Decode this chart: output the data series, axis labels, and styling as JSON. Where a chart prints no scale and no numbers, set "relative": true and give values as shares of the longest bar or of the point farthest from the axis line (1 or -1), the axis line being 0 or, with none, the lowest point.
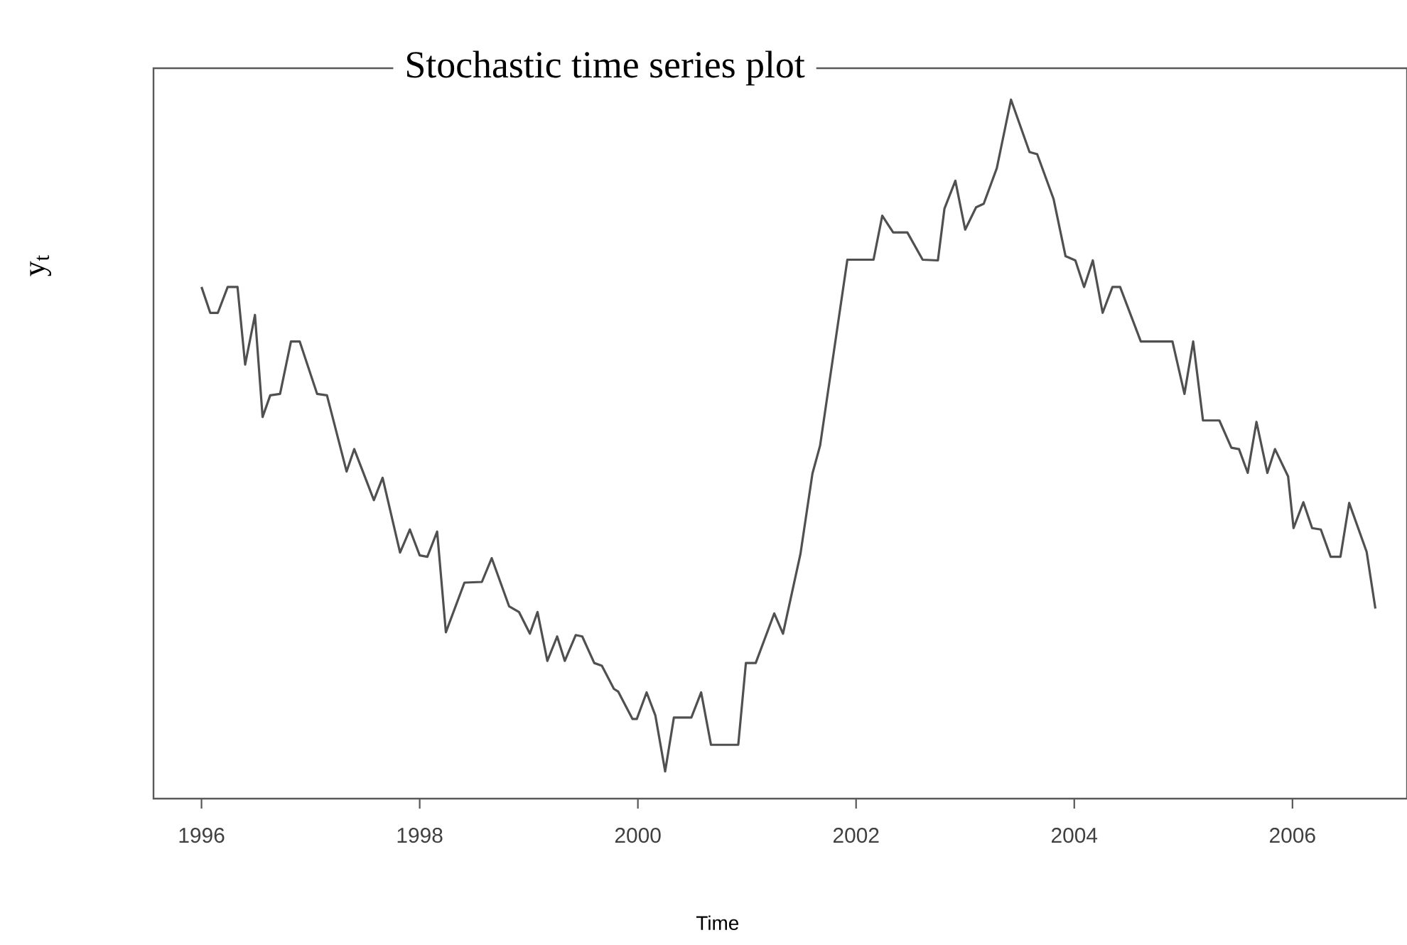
{
  "chart_data": {
    "type": "line",
    "title": "Stochastic time series plot",
    "xlabel": "Time",
    "ylabel": "y$_{t}$",
    "relative": true,
    "xlim": [
      1995.56,
      2007.05
    ],
    "xticks": [
      1996,
      1998,
      2000,
      2002,
      2004,
      2006
    ],
    "series": [
      {
        "color": "#505050",
        "x": [
          1996.0,
          1996.08,
          1996.15,
          1996.24,
          1996.33,
          1996.4,
          1996.49,
          1996.56,
          1996.63,
          1996.72,
          1996.82,
          1996.9,
          1997.06,
          1997.15,
          1997.33,
          1997.4,
          1997.58,
          1997.66,
          1997.82,
          1997.91,
          1998.0,
          1998.07,
          1998.16,
          1998.24,
          1998.41,
          1998.57,
          1998.66,
          1998.82,
          1998.91,
          1999.01,
          1999.08,
          1999.17,
          1999.26,
          1999.33,
          1999.43,
          1999.49,
          1999.6,
          1999.67,
          1999.78,
          1999.82,
          1999.95,
          1999.99,
          2000.08,
          2000.16,
          2000.25,
          2000.33,
          2000.49,
          2000.58,
          2000.67,
          2000.92,
          2000.99,
          2001.08,
          2001.25,
          2001.33,
          2001.49,
          2001.6,
          2001.67,
          2001.92,
          2002.16,
          2002.24,
          2002.34,
          2002.47,
          2002.61,
          2002.75,
          2002.81,
          2002.91,
          2003.0,
          2003.1,
          2003.17,
          2003.29,
          2003.42,
          2003.59,
          2003.66,
          2003.81,
          2003.92,
          2004.01,
          2004.09,
          2004.17,
          2004.26,
          2004.35,
          2004.42,
          2004.61,
          2004.9,
          2005.01,
          2005.09,
          2005.18,
          2005.33,
          2005.44,
          2005.51,
          2005.59,
          2005.67,
          2005.77,
          2005.84,
          2005.96,
          2006.01,
          2006.1,
          2006.18,
          2006.26,
          2006.35,
          2006.44,
          2006.52,
          2006.68,
          2006.76
        ],
        "values": [
          0.732,
          0.695,
          0.695,
          0.732,
          0.732,
          0.621,
          0.692,
          0.546,
          0.577,
          0.579,
          0.654,
          0.654,
          0.579,
          0.577,
          0.468,
          0.5,
          0.427,
          0.459,
          0.352,
          0.385,
          0.348,
          0.346,
          0.382,
          0.238,
          0.309,
          0.31,
          0.344,
          0.275,
          0.267,
          0.236,
          0.267,
          0.197,
          0.232,
          0.197,
          0.234,
          0.232,
          0.194,
          0.19,
          0.157,
          0.153,
          0.114,
          0.114,
          0.152,
          0.119,
          0.039,
          0.116,
          0.116,
          0.152,
          0.077,
          0.077,
          0.194,
          0.194,
          0.265,
          0.236,
          0.35,
          0.465,
          0.505,
          0.771,
          0.771,
          0.834,
          0.81,
          0.81,
          0.771,
          0.77,
          0.844,
          0.884,
          0.814,
          0.846,
          0.851,
          0.902,
          1.0,
          0.925,
          0.922,
          0.858,
          0.776,
          0.77,
          0.732,
          0.77,
          0.695,
          0.732,
          0.732,
          0.654,
          0.654,
          0.579,
          0.654,
          0.541,
          0.541,
          0.502,
          0.5,
          0.466,
          0.539,
          0.466,
          0.5,
          0.461,
          0.387,
          0.424,
          0.387,
          0.385,
          0.346,
          0.346,
          0.423,
          0.353,
          0.272
        ]
      }
    ]
  }
}
